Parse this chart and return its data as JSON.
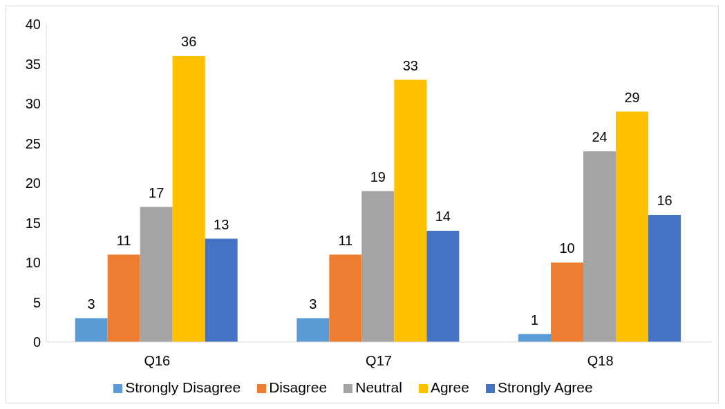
{
  "chart_data": {
    "type": "bar",
    "categories": [
      "Q16",
      "Q17",
      "Q18"
    ],
    "series": [
      {
        "name": "Strongly Disagree",
        "color": "#5b9bd5",
        "values": [
          3,
          3,
          1
        ]
      },
      {
        "name": "Disagree",
        "color": "#ed7d31",
        "values": [
          11,
          11,
          10
        ]
      },
      {
        "name": "Neutral",
        "color": "#a5a5a5",
        "values": [
          17,
          19,
          24
        ]
      },
      {
        "name": "Agree",
        "color": "#ffc000",
        "values": [
          36,
          33,
          29
        ]
      },
      {
        "name": "Strongly Agree",
        "color": "#4472c4",
        "values": [
          13,
          14,
          16
        ]
      }
    ],
    "ylim": [
      0,
      40
    ],
    "yticks": [
      0,
      5,
      10,
      15,
      20,
      25,
      30,
      35,
      40
    ],
    "grid": false,
    "legend": "bottom",
    "data_labels": true
  }
}
